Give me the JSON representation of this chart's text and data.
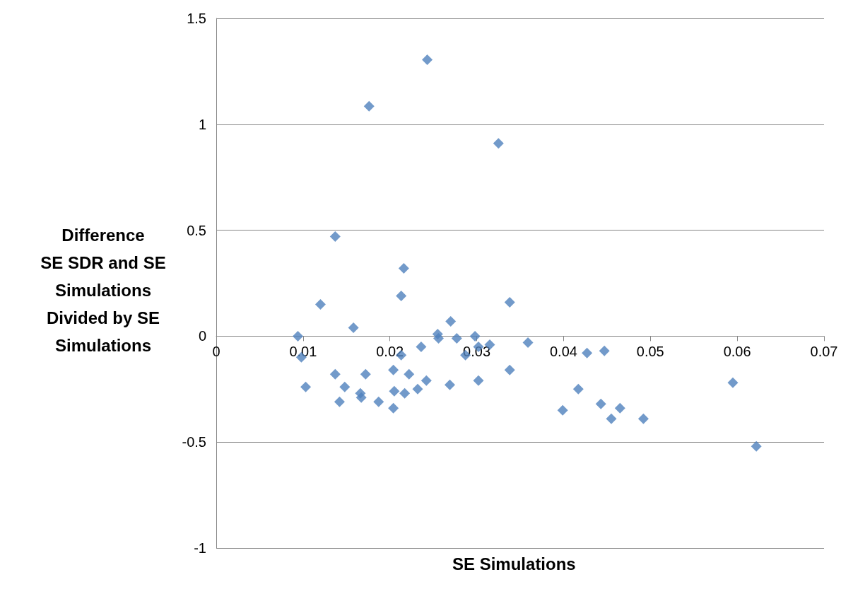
{
  "chart_data": {
    "type": "scatter",
    "xlabel": "SE Simulations",
    "ylabel": "Difference\nSE SDR and SE\nSimulations\nDivided by SE\nSimulations",
    "x": [
      0.0094,
      0.0098,
      0.0103,
      0.012,
      0.0137,
      0.0137,
      0.0142,
      0.0148,
      0.0158,
      0.0166,
      0.0167,
      0.0172,
      0.0176,
      0.0187,
      0.0204,
      0.0205,
      0.0204,
      0.0213,
      0.0213,
      0.0216,
      0.0217,
      0.0222,
      0.0232,
      0.0236,
      0.0242,
      0.0243,
      0.0255,
      0.0256,
      0.0269,
      0.027,
      0.0277,
      0.0287,
      0.0298,
      0.0302,
      0.0302,
      0.0315,
      0.0325,
      0.0338,
      0.0338,
      0.0359,
      0.0399,
      0.0417,
      0.0427,
      0.0443,
      0.0447,
      0.0455,
      0.0465,
      0.0492,
      0.0595,
      0.0622
    ],
    "series": [
      {
        "color": "#4f81bd",
        "values": [
          0.0,
          -0.1,
          -0.24,
          0.15,
          0.47,
          -0.18,
          -0.31,
          -0.24,
          0.04,
          -0.27,
          -0.29,
          -0.18,
          1.085,
          -0.31,
          -0.16,
          -0.26,
          -0.34,
          -0.09,
          0.19,
          0.32,
          -0.27,
          -0.18,
          -0.25,
          -0.05,
          -0.21,
          1.305,
          0.01,
          -0.01,
          -0.23,
          0.07,
          -0.01,
          -0.09,
          0.0,
          -0.05,
          -0.21,
          -0.04,
          0.91,
          -0.16,
          0.16,
          -0.03,
          -0.35,
          -0.25,
          -0.08,
          -0.32,
          -0.07,
          -0.39,
          -0.34,
          -0.39,
          -0.22,
          -0.52
        ]
      }
    ],
    "xlim": [
      0,
      0.07
    ],
    "xticks": [
      0,
      0.01,
      0.02,
      0.03,
      0.04,
      0.05,
      0.06,
      0.07
    ],
    "ylim": [
      -1,
      1.5
    ],
    "yticks": [
      -1,
      -0.5,
      0,
      0.5,
      1,
      1.5
    ],
    "grid": "y",
    "marker": "diamond"
  }
}
